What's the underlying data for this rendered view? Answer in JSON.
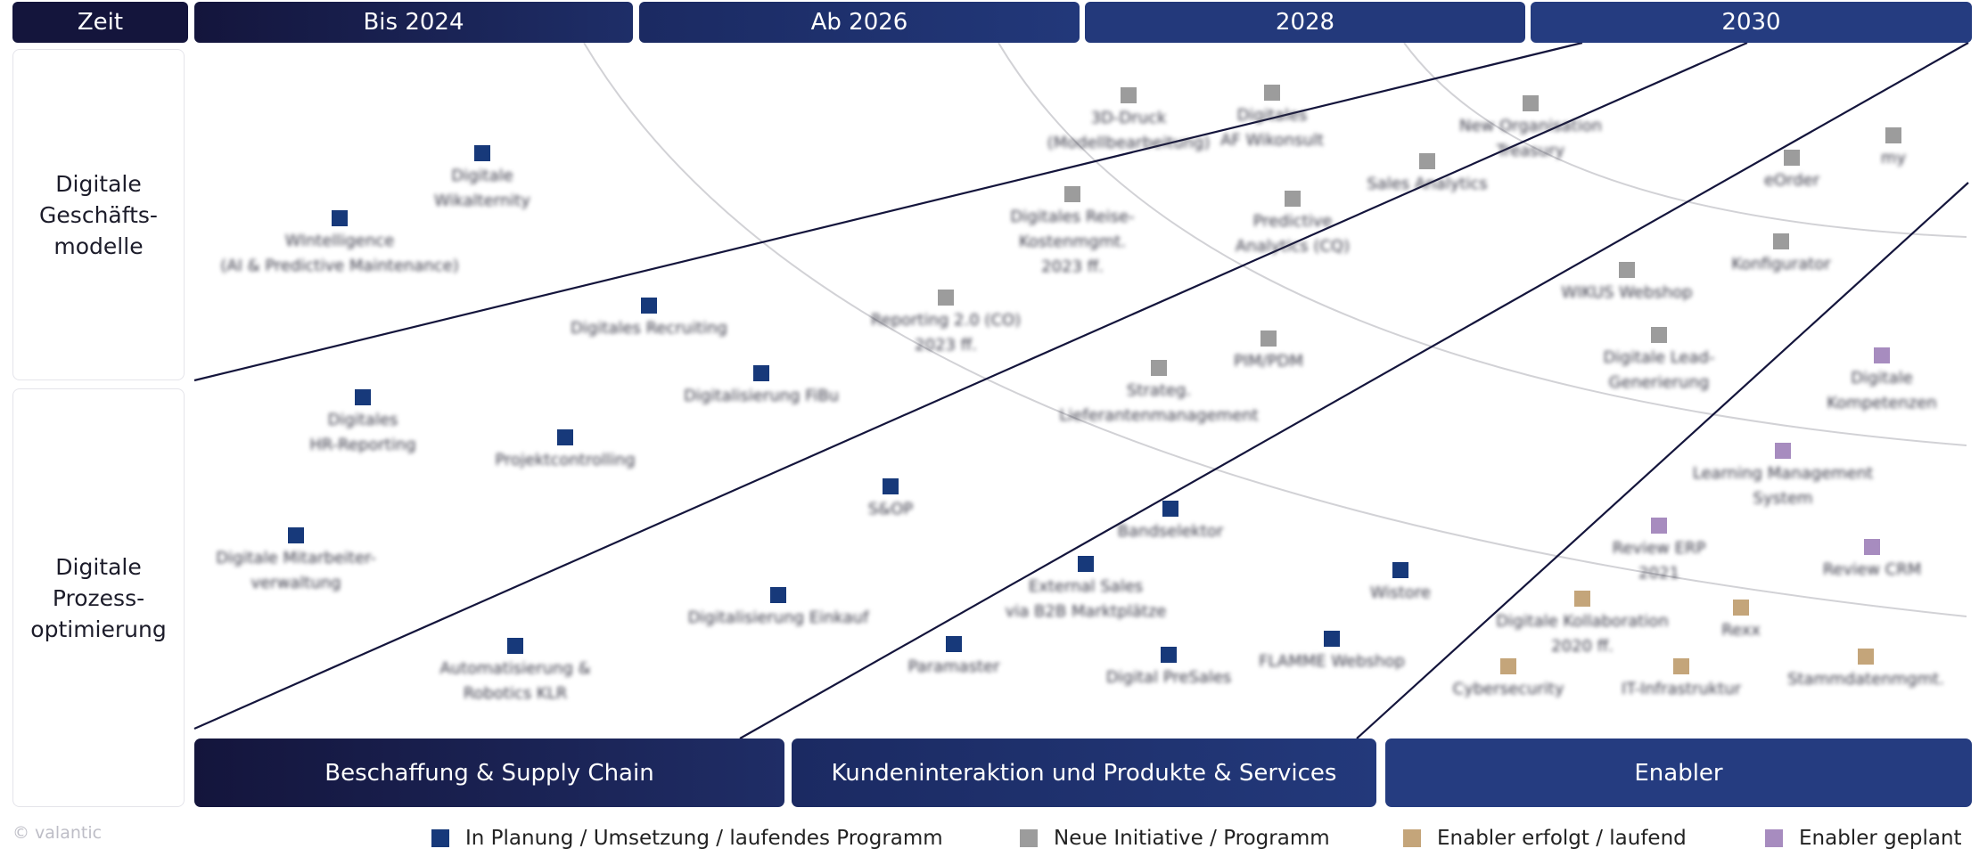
{
  "header": {
    "zeit": "Zeit",
    "periods": [
      "Bis 2024",
      "Ab 2026",
      "2028",
      "2030"
    ]
  },
  "rows": [
    {
      "label": "Digitale\nGeschäfts-\nmodelle"
    },
    {
      "label": "Digitale\nProzess-\noptimierung"
    }
  ],
  "categories": [
    "Beschaffung & Supply Chain",
    "Kundeninteraktion und Produkte & Services",
    "Enabler"
  ],
  "colors": {
    "plan": "#17397a",
    "neu": "#9c9c9c",
    "enabler_laufend": "#c4a57a",
    "enabler_geplant": "#a78cbf",
    "navy": "#14153c"
  },
  "legend": [
    {
      "label": "In Planung / Umsetzung / laufendes Programm",
      "status": "plan"
    },
    {
      "label": "Neue Initiative / Programm",
      "status": "neu"
    },
    {
      "label": "Enabler erfolgt / laufend",
      "status": "enab"
    },
    {
      "label": "Enabler geplant",
      "status": "gepl"
    }
  ],
  "copyright": "© valantic",
  "initiatives": [
    {
      "label": "WIntelligence\n(AI & Predictive Maintenance)",
      "status": "plan"
    },
    {
      "label": "Digitale\nWikalternity",
      "status": "plan"
    },
    {
      "label": "Digitales Recruiting",
      "status": "plan"
    },
    {
      "label": "Digitales\nHR-Reporting",
      "status": "plan"
    },
    {
      "label": "Projektcontrolling",
      "status": "plan"
    },
    {
      "label": "Digitalisierung FiBu",
      "status": "plan"
    },
    {
      "label": "Digitale Mitarbeiter-\nverwaltung",
      "status": "plan"
    },
    {
      "label": "Automatisierung &\nRobotics KLR",
      "status": "plan"
    },
    {
      "label": "Digitalisierung Einkauf",
      "status": "plan"
    },
    {
      "label": "S&OP",
      "status": "plan"
    },
    {
      "label": "Paramaster",
      "status": "plan"
    },
    {
      "label": "Bandselektor",
      "status": "plan"
    },
    {
      "label": "External Sales\nvia B2B Marktplätze",
      "status": "plan"
    },
    {
      "label": "Digital PreSales",
      "status": "plan"
    },
    {
      "label": "FLAMME Webshop",
      "status": "plan"
    },
    {
      "label": "Wistore",
      "status": "plan"
    },
    {
      "label": "3D-Druck\n(Modellbearbeitung)",
      "status": "neu"
    },
    {
      "label": "Digitales\nAF Wikonsult",
      "status": "neu"
    },
    {
      "label": "New Organisation\nTreasury",
      "status": "neu"
    },
    {
      "label": "Digitales Reise-\nKostenmgmt.\n2023 ff.",
      "status": "neu"
    },
    {
      "label": "Reporting 2.0 (CO)\n2023 ff.",
      "status": "neu"
    },
    {
      "label": "Predictive\nAnalytics (CQ)",
      "status": "neu"
    },
    {
      "label": "Sales Analytics",
      "status": "neu"
    },
    {
      "label": "eOrder",
      "status": "neu"
    },
    {
      "label": "my",
      "status": "neu"
    },
    {
      "label": "Konfigurator",
      "status": "neu"
    },
    {
      "label": "WIKUS Webshop",
      "status": "neu"
    },
    {
      "label": "PIM/PDM",
      "status": "neu"
    },
    {
      "label": "Strateg.\nLieferantenmanagement",
      "status": "neu"
    },
    {
      "label": "Digitale Lead-\nGenerierung",
      "status": "neu"
    },
    {
      "label": "Digitale\nKompetenzen",
      "status": "gepl"
    },
    {
      "label": "Learning Management\nSystem",
      "status": "gepl"
    },
    {
      "label": "Review ERP\n2021",
      "status": "gepl"
    },
    {
      "label": "Review CRM",
      "status": "gepl"
    },
    {
      "label": "Digitale Kollaboration\n2020 ff.",
      "status": "enab"
    },
    {
      "label": "Rexx",
      "status": "enab"
    },
    {
      "label": "Cybersecurity",
      "status": "enab"
    },
    {
      "label": "IT-Infrastruktur",
      "status": "enab"
    },
    {
      "label": "Stammdatenmgmt.",
      "status": "enab"
    }
  ]
}
